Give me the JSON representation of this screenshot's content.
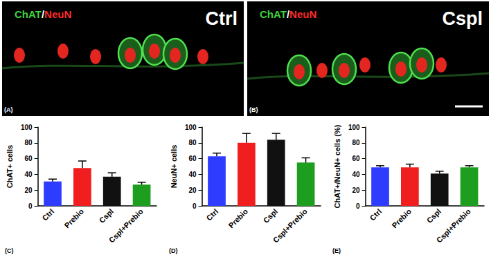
{
  "image_panels": [
    {
      "letter": "(A)",
      "condition": "Ctrl"
    },
    {
      "letter": "(B)",
      "condition": "Cspl"
    }
  ],
  "stain": [
    {
      "text": "ChAT",
      "color": "#3fd13f"
    },
    {
      "text": "/",
      "color": "#ffffff"
    },
    {
      "text": "NeuN",
      "color": "#ff2a2a"
    }
  ],
  "chart_data": [
    {
      "type": "bar",
      "title": "(C)",
      "y_label": "ChAT+ cells",
      "categories": [
        "Ctrl",
        "Prebio",
        "Cspl",
        "Cspl+Prebio"
      ],
      "values": [
        31,
        48,
        37,
        27
      ],
      "errors": [
        3,
        9,
        5,
        3
      ],
      "colors": [
        "#2e3cff",
        "#f01e1e",
        "#111111",
        "#1e9e1e"
      ],
      "ylim": [
        0,
        100
      ],
      "yticks": [
        0,
        20,
        40,
        60,
        80,
        100
      ],
      "grid": false
    },
    {
      "type": "bar",
      "title": "(D)",
      "y_label": "NeuN+ cells",
      "categories": [
        "Ctrl",
        "Prebio",
        "Cspl",
        "Cspl+Prebio"
      ],
      "values": [
        63,
        80,
        84,
        55
      ],
      "errors": [
        4,
        12,
        8,
        6
      ],
      "colors": [
        "#2e3cff",
        "#f01e1e",
        "#111111",
        "#1e9e1e"
      ],
      "ylim": [
        0,
        100
      ],
      "yticks": [
        0,
        20,
        40,
        60,
        80,
        100
      ],
      "grid": false
    },
    {
      "type": "bar",
      "title": "(E)",
      "y_label": "ChAT+/NeuN+ cells (%)",
      "categories": [
        "Ctrl",
        "Prebio",
        "Cspl",
        "Cspl+Prebio"
      ],
      "values": [
        49,
        49,
        41,
        49
      ],
      "errors": [
        2,
        4,
        3,
        2
      ],
      "colors": [
        "#2e3cff",
        "#f01e1e",
        "#111111",
        "#1e9e1e"
      ],
      "ylim": [
        0,
        100
      ],
      "yticks": [
        0,
        20,
        40,
        60,
        80,
        100
      ],
      "grid": false
    }
  ]
}
